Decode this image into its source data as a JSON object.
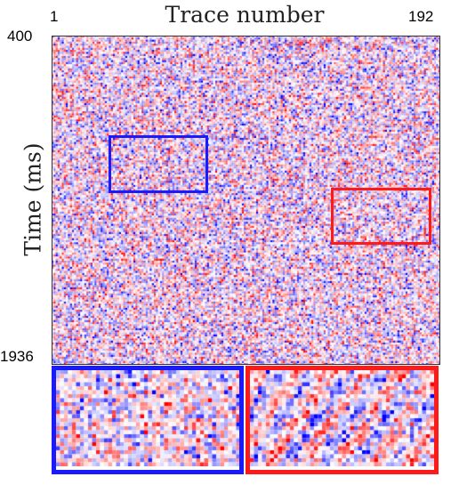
{
  "chart_data": {
    "type": "heatmap",
    "title": "Trace number",
    "xlabel": "Trace number",
    "ylabel": "Time (ms)",
    "x_ticks": [
      "1",
      "192"
    ],
    "y_ticks": [
      "400",
      "1936"
    ],
    "xlim": [
      1,
      192
    ],
    "ylim": [
      400,
      1936
    ],
    "colormap": [
      "#0000ff",
      "#ffffff",
      "#ff0000"
    ],
    "highlight_boxes": [
      {
        "name": "blue-box",
        "color": "#1a1aff",
        "trace_range": [
          31,
          80
        ],
        "time_range": [
          890,
          1100
        ]
      },
      {
        "name": "red-box",
        "color": "#ff1a1a",
        "trace_range": [
          142,
          192
        ],
        "time_range": [
          1080,
          1290
        ]
      }
    ],
    "insets": [
      {
        "source": "blue-box",
        "color": "#1a1aff"
      },
      {
        "source": "red-box",
        "color": "#ff1a1a"
      }
    ]
  }
}
